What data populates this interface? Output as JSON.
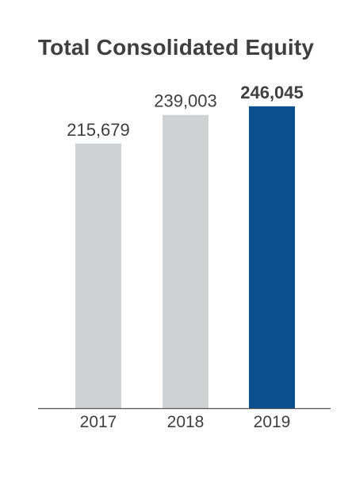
{
  "chart_data": {
    "type": "bar",
    "title": "Total Consolidated Equity",
    "categories": [
      "2017",
      "2018",
      "2019"
    ],
    "values": [
      215679,
      239003,
      246045
    ],
    "value_labels": [
      "215,679",
      "239,003",
      "246,045"
    ],
    "xlabel": "",
    "ylabel": "",
    "ylim": [
      0,
      255000
    ],
    "grid": false,
    "legend": "none",
    "highlight_index": 2
  },
  "colors": {
    "bar_default": "#d0d1d3",
    "bar_highlight": "#0a4f8f",
    "text": "#3f3f3f",
    "axis": "#555555"
  }
}
